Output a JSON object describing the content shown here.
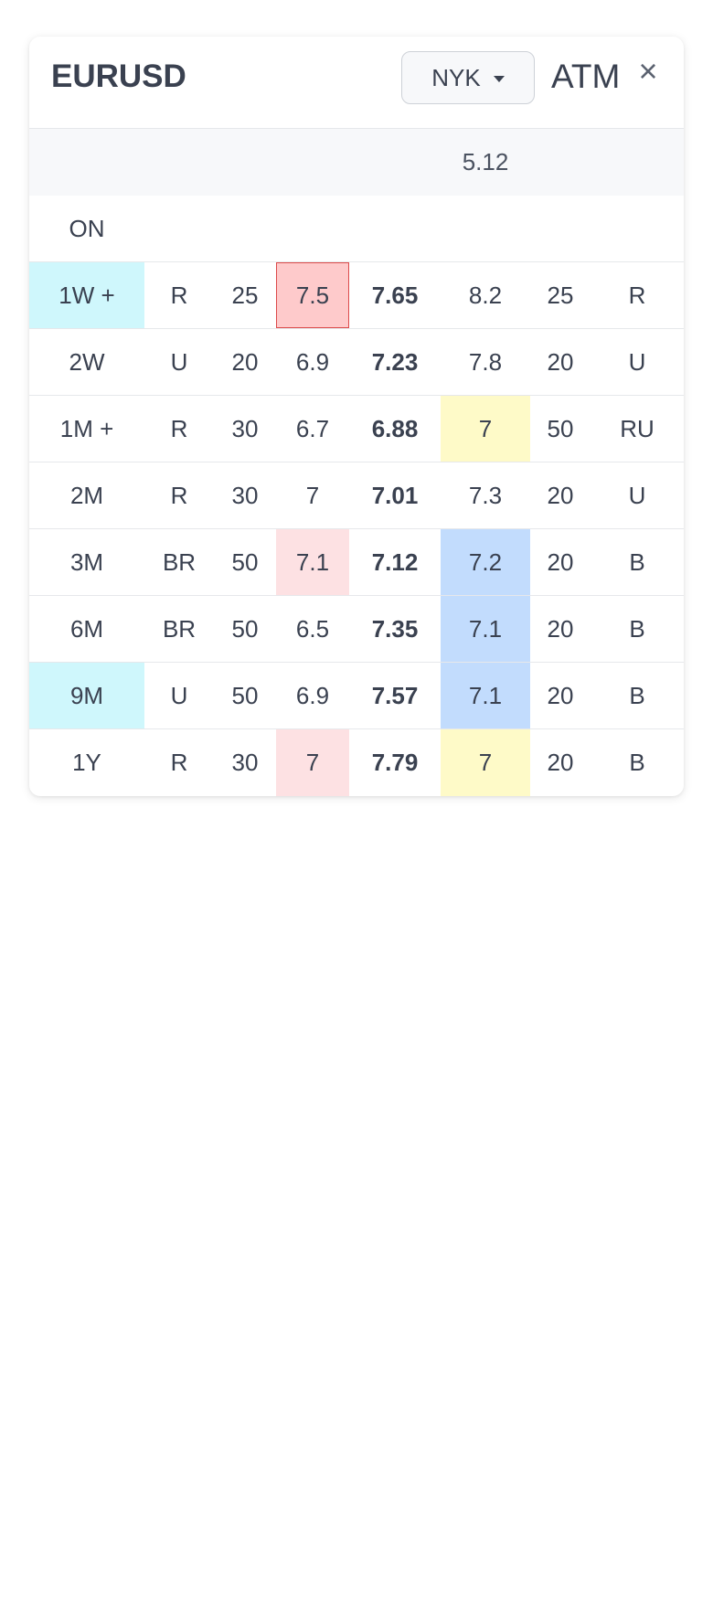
{
  "header": {
    "title": "EURUSD",
    "location": "NYK",
    "mode": "ATM",
    "close_glyph": "×"
  },
  "atm_row": {
    "value": "5.12"
  },
  "rows": [
    {
      "tenor": "ON",
      "a": "",
      "b": "",
      "c": "",
      "mid": "",
      "d": "",
      "e": "",
      "f": ""
    },
    {
      "tenor": "1W +",
      "a": "R",
      "b": "25",
      "c": "7.5",
      "mid": "7.65",
      "d": "8.2",
      "e": "25",
      "f": "R"
    },
    {
      "tenor": "2W",
      "a": "U",
      "b": "20",
      "c": "6.9",
      "mid": "7.23",
      "d": "7.8",
      "e": "20",
      "f": "U"
    },
    {
      "tenor": "1M +",
      "a": "R",
      "b": "30",
      "c": "6.7",
      "mid": "6.88",
      "d": "7",
      "e": "50",
      "f": "RU"
    },
    {
      "tenor": "2M",
      "a": "R",
      "b": "30",
      "c": "7",
      "mid": "7.01",
      "d": "7.3",
      "e": "20",
      "f": "U"
    },
    {
      "tenor": "3M",
      "a": "BR",
      "b": "50",
      "c": "7.1",
      "mid": "7.12",
      "d": "7.2",
      "e": "20",
      "f": "B"
    },
    {
      "tenor": "6M",
      "a": "BR",
      "b": "50",
      "c": "6.5",
      "mid": "7.35",
      "d": "7.1",
      "e": "20",
      "f": "B"
    },
    {
      "tenor": "9M",
      "a": "U",
      "b": "50",
      "c": "6.9",
      "mid": "7.57",
      "d": "7.1",
      "e": "20",
      "f": "B"
    },
    {
      "tenor": "1Y",
      "a": "R",
      "b": "30",
      "c": "7",
      "mid": "7.79",
      "d": "7",
      "e": "20",
      "f": "B"
    }
  ],
  "colors": {
    "highlight_cyan": "#cff7fc",
    "highlight_pink": "#fde1e3",
    "highlight_pink_selected": "#fecacb",
    "highlight_yellow": "#fefac8",
    "highlight_blue": "#c2dcfd"
  }
}
